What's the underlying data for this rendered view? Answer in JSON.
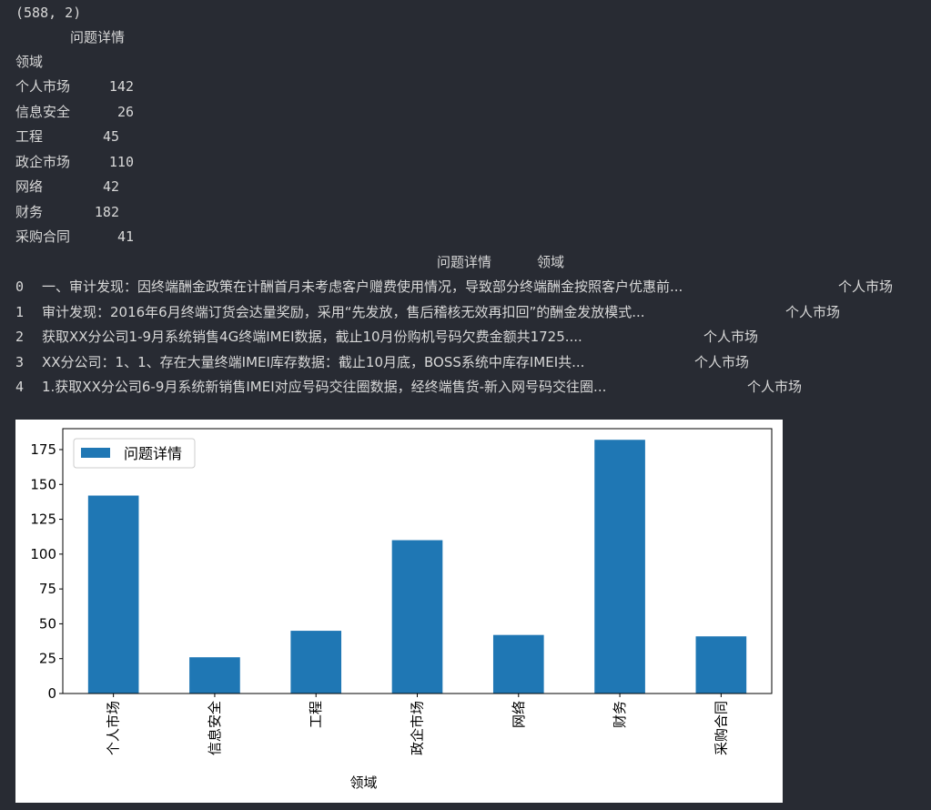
{
  "output": {
    "shape_line": "(588, 2)",
    "series_header": "问题详情",
    "index_name": "领域",
    "value_counts": [
      {
        "label": "个人市场",
        "value": "142"
      },
      {
        "label": "信息安全",
        "value": "26"
      },
      {
        "label": "工程",
        "value": "45"
      },
      {
        "label": "政企市场",
        "value": "110"
      },
      {
        "label": "网络",
        "value": "42"
      },
      {
        "label": "财务",
        "value": "182"
      },
      {
        "label": "采购合同",
        "value": "41"
      }
    ],
    "df_head": {
      "columns": [
        "问题详情",
        "领域"
      ],
      "rows": [
        {
          "index": "0",
          "detail": "一、审计发现：因终端酬金政策在计酬首月未考虑客户赠费使用情况，导致部分终端酬金按照客户优惠前...",
          "domain": "个人市场"
        },
        {
          "index": "1",
          "detail": "审计发现：2016年6月终端订货会达量奖励，采用“先发放，售后稽核无效再扣回”的酬金发放模式...",
          "domain": "个人市场"
        },
        {
          "index": "2",
          "detail": "获取XX分公司1-9月系统销售4G终端IMEI数据，截止10月份购机号码欠费金额共1725....",
          "domain": "个人市场"
        },
        {
          "index": "3",
          "detail": "XX分公司：1、1、存在大量终端IMEI库存数据：截止10月底，BOSS系统中库存IMEI共...",
          "domain": "个人市场"
        },
        {
          "index": "4",
          "detail": "1.获取XX分公司6-9月系统新销售IMEI对应号码交往圈数据，经终端售货-新入网号码交往圈...",
          "domain": "个人市场"
        }
      ]
    }
  },
  "chart_data": {
    "type": "bar",
    "categories": [
      "个人市场",
      "信息安全",
      "工程",
      "政企市场",
      "网络",
      "财务",
      "采购合同"
    ],
    "series": [
      {
        "name": "问题详情",
        "values": [
          142,
          26,
          45,
          110,
          42,
          182,
          41
        ]
      }
    ],
    "xlabel": "领域",
    "ylabel": "",
    "ylim": [
      0,
      190
    ],
    "yticks": [
      0,
      25,
      50,
      75,
      100,
      125,
      150,
      175
    ],
    "legend": "top-left",
    "grid": false,
    "bar_color": "#1f77b4"
  }
}
